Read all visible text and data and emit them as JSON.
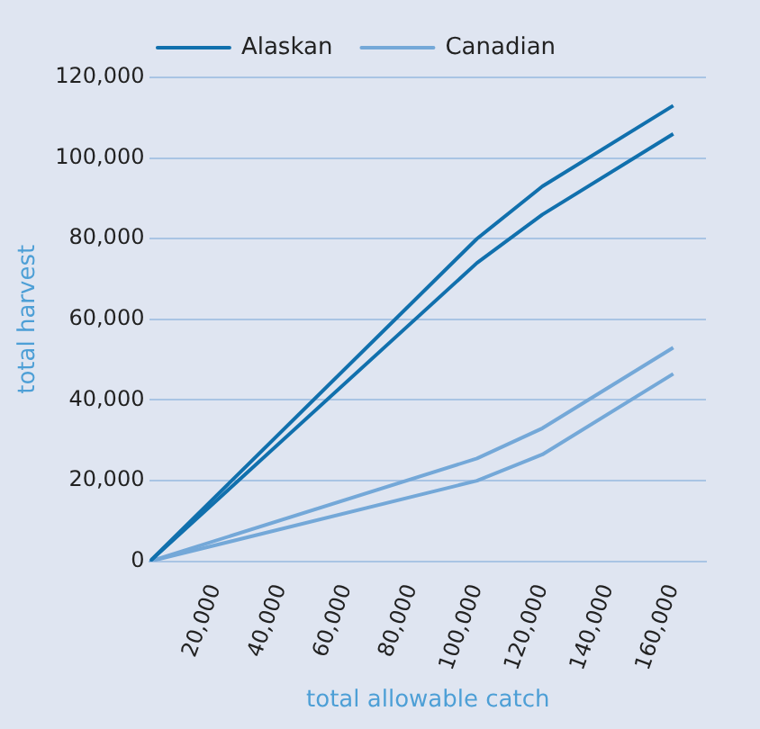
{
  "chart_data": {
    "type": "line",
    "xlabel": "total allowable catch",
    "ylabel": "total harvest",
    "x": [
      0,
      100000,
      120000,
      160000
    ],
    "series": [
      {
        "name": "Alaskan",
        "color": "#1170ad",
        "values": [
          0,
          80000,
          93000,
          113000
        ]
      },
      {
        "color": "#1170ad",
        "values": [
          0,
          74000,
          86000,
          106000
        ]
      },
      {
        "name": "Canadian",
        "color": "#74a8d8",
        "values": [
          0,
          25500,
          33000,
          53000
        ]
      },
      {
        "color": "#74a8d8",
        "values": [
          0,
          20000,
          26500,
          46500
        ]
      }
    ],
    "xlim": [
      0,
      170000
    ],
    "xticks": [
      {
        "value": 20000,
        "label": "20,000"
      },
      {
        "value": 40000,
        "label": "40,000"
      },
      {
        "value": 60000,
        "label": "60,000"
      },
      {
        "value": 80000,
        "label": "80,000"
      },
      {
        "value": 100000,
        "label": "100,000"
      },
      {
        "value": 120000,
        "label": "120,000"
      },
      {
        "value": 140000,
        "label": "140,000"
      },
      {
        "value": 160000,
        "label": "160,000"
      }
    ],
    "ylim": [
      0,
      120000
    ],
    "yticks": [
      {
        "value": 0,
        "label": "0"
      },
      {
        "value": 20000,
        "label": "20,000"
      },
      {
        "value": 40000,
        "label": "40,000"
      },
      {
        "value": 60000,
        "label": "60,000"
      },
      {
        "value": 80000,
        "label": "80,000"
      },
      {
        "value": 100000,
        "label": "100,000"
      },
      {
        "value": 120000,
        "label": "120,000"
      }
    ],
    "grid": "y",
    "legend": "top",
    "marker": "none",
    "line_style": "solid"
  }
}
